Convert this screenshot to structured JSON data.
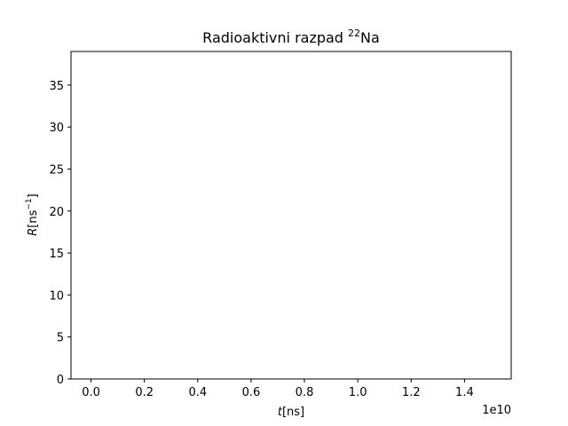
{
  "chart_data": {
    "type": "line",
    "title": {
      "text": "Radioaktivni razpad ",
      "isotope_mass": "22",
      "isotope_symbol": "Na"
    },
    "xlabel": {
      "var": "t",
      "unit": "[ns]"
    },
    "ylabel": {
      "var": "R",
      "unit_open": "[ns",
      "exponent": "−1",
      "unit_close": "]"
    },
    "x_offset_label": "1e10",
    "xlim": [
      -0.075,
      1.575
    ],
    "ylim": [
      0,
      39
    ],
    "xticks": [
      0.0,
      0.2,
      0.4,
      0.6,
      0.8,
      1.0,
      1.2,
      1.4
    ],
    "xtick_labels": [
      "0.0",
      "0.2",
      "0.4",
      "0.6",
      "0.8",
      "1.0",
      "1.2",
      "1.4"
    ],
    "yticks": [
      0,
      5,
      10,
      15,
      20,
      25,
      30,
      35
    ],
    "ytick_labels": [
      "0",
      "5",
      "10",
      "15",
      "20",
      "25",
      "30",
      "35"
    ],
    "grid": false,
    "series": []
  }
}
